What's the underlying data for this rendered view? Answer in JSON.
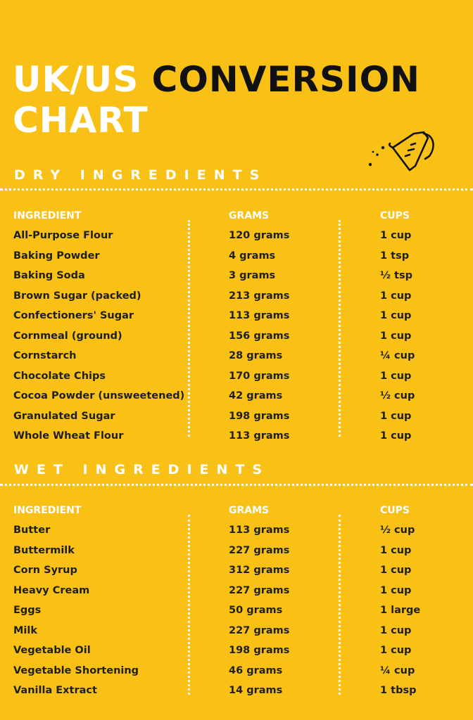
{
  "title": {
    "part1": "UK/US",
    "part2": "CONVERSION",
    "part3": "CHART"
  },
  "icons": {
    "cup": "measuring-cup-icon"
  },
  "colors": {
    "background": "#F9C116",
    "accent": "#ffffff",
    "text": "#1a1a1a"
  },
  "dry": {
    "heading": "DRY INGREDIENTS",
    "headers": {
      "ingredient": "INGREDIENT",
      "grams": "GRAMS",
      "cups": "CUPS"
    },
    "rows": [
      {
        "ingredient": "All-Purpose Flour",
        "grams": "120 grams",
        "cups": "1 cup"
      },
      {
        "ingredient": "Baking Powder",
        "grams": "4 grams",
        "cups": "1 tsp"
      },
      {
        "ingredient": "Baking Soda",
        "grams": "3 grams",
        "cups": "½ tsp"
      },
      {
        "ingredient": "Brown Sugar (packed)",
        "grams": "213 grams",
        "cups": "1 cup"
      },
      {
        "ingredient": "Confectioners' Sugar",
        "grams": "113 grams",
        "cups": "1 cup"
      },
      {
        "ingredient": "Cornmeal (ground)",
        "grams": "156 grams",
        "cups": "1 cup"
      },
      {
        "ingredient": "Cornstarch",
        "grams": "28 grams",
        "cups": "¼ cup"
      },
      {
        "ingredient": "Chocolate Chips",
        "grams": "170 grams",
        "cups": "1 cup"
      },
      {
        "ingredient": "Cocoa Powder (unsweetened)",
        "grams": "42 grams",
        "cups": "½ cup"
      },
      {
        "ingredient": "Granulated Sugar",
        "grams": "198 grams",
        "cups": "1 cup"
      },
      {
        "ingredient": "Whole Wheat Flour",
        "grams": "113 grams",
        "cups": "1 cup"
      }
    ]
  },
  "wet": {
    "heading": "WET INGREDIENTS",
    "headers": {
      "ingredient": "INGREDIENT",
      "grams": "GRAMS",
      "cups": "CUPS"
    },
    "rows": [
      {
        "ingredient": "Butter",
        "grams": "113 grams",
        "cups": "½ cup"
      },
      {
        "ingredient": "Buttermilk",
        "grams": "227 grams",
        "cups": "1 cup"
      },
      {
        "ingredient": "Corn Syrup",
        "grams": "312 grams",
        "cups": "1 cup"
      },
      {
        "ingredient": "Heavy Cream",
        "grams": "227 grams",
        "cups": "1 cup"
      },
      {
        "ingredient": "Eggs",
        "grams": "50 grams",
        "cups": "1 large"
      },
      {
        "ingredient": "Milk",
        "grams": "227 grams",
        "cups": "1 cup"
      },
      {
        "ingredient": "Vegetable Oil",
        "grams": "198 grams",
        "cups": "1 cup"
      },
      {
        "ingredient": "Vegetable Shortening",
        "grams": "46 grams",
        "cups": "¼ cup"
      },
      {
        "ingredient": "Vanilla Extract",
        "grams": "14 grams",
        "cups": "1 tbsp"
      }
    ]
  }
}
